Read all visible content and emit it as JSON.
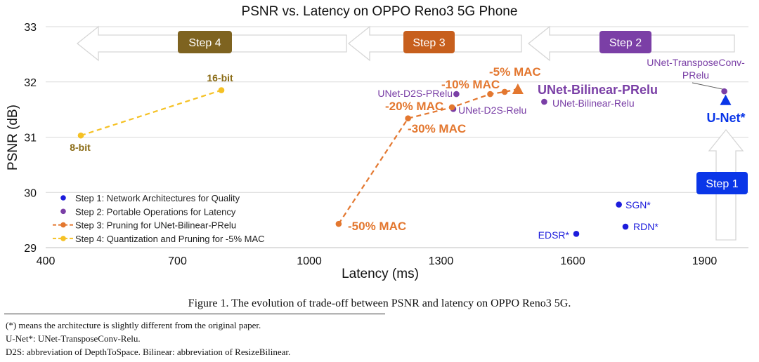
{
  "chart_data": {
    "type": "scatter",
    "title": "PSNR vs. Latency on OPPO Reno3 5G Phone",
    "xlabel": "Latency (ms)",
    "ylabel": "PSNR (dB)",
    "xlim": [
      400,
      2000
    ],
    "ylim": [
      29,
      33
    ],
    "xticks": [
      400,
      700,
      1000,
      1300,
      1600,
      1900
    ],
    "yticks": [
      29,
      30,
      31,
      32,
      33
    ],
    "grid": "horizontal",
    "legend_position": "bottom-left",
    "colors": {
      "step1": "#1c1cdc",
      "step2": "#7a3fa6",
      "step3": "#e3772f",
      "step4": "#f5c124",
      "step4_text": "#8a6b15",
      "banner_step1": "#0a36e8",
      "banner_step2": "#7b3fa6",
      "banner_step3": "#c75f1d",
      "banner_step4": "#7e6320"
    },
    "legend": [
      {
        "label": "Step 1: Network Architectures for Quality",
        "key": "step1",
        "style": "dot"
      },
      {
        "label": "Step 2: Portable Operations for Latency",
        "key": "step2",
        "style": "dot"
      },
      {
        "label": "Step 3: Pruning for UNet-Bilinear-PRelu",
        "key": "step3",
        "style": "dashed"
      },
      {
        "label": "Step 4: Quantization and Pruning for -5% MAC",
        "key": "step4",
        "style": "dashed"
      }
    ],
    "step_banners": [
      "Step 4",
      "Step 3",
      "Step 2",
      "Step 1"
    ],
    "series": [
      {
        "name": "Step 1: Network Architectures for Quality",
        "key": "step1",
        "points": [
          {
            "label": "SGN*",
            "x": 1705,
            "y": 29.78
          },
          {
            "label": "RDN*",
            "x": 1720,
            "y": 29.38
          },
          {
            "label": "EDSR*",
            "x": 1608,
            "y": 29.25
          }
        ]
      },
      {
        "name": "Step 2: Portable Operations for Latency",
        "key": "step2",
        "points": [
          {
            "label": "UNet-TransposeConv-PRelu",
            "x": 1945,
            "y": 31.83
          },
          {
            "label": "UNet-D2S-PRelu",
            "x": 1335,
            "y": 31.78
          },
          {
            "label": "UNet-D2S-Relu",
            "x": 1328,
            "y": 31.51
          },
          {
            "label": "UNet-Bilinear-Relu",
            "x": 1535,
            "y": 31.64
          }
        ]
      },
      {
        "name": "Step 3: Pruning for UNet-Bilinear-PRelu",
        "key": "step3",
        "points": [
          {
            "label": "-50% MAC",
            "x": 1067,
            "y": 29.43
          },
          {
            "label": "-30% MAC",
            "x": 1225,
            "y": 31.34
          },
          {
            "label": "-20% MAC",
            "x": 1325,
            "y": 31.54
          },
          {
            "label": "-10% MAC",
            "x": 1412,
            "y": 31.78
          },
          {
            "label": "-5% MAC",
            "x": 1445,
            "y": 31.82
          }
        ]
      },
      {
        "name": "Step 4: Quantization and Pruning for -5% MAC",
        "key": "step4",
        "points": [
          {
            "label": "8-bit",
            "x": 480,
            "y": 31.03
          },
          {
            "label": "16-bit",
            "x": 800,
            "y": 31.85
          }
        ]
      }
    ],
    "triangles": [
      {
        "label": "UNet-Bilinear-PRelu",
        "x": 1475,
        "y": 31.87
      },
      {
        "label": "U-Net*",
        "x": 1948,
        "y": 31.67
      }
    ]
  },
  "caption": "Figure 1. The evolution of trade-off between PSNR and latency on OPPO Reno3 5G.",
  "footnotes": [
    "(*) means the architecture is slightly different from the original paper.",
    "U-Net*: UNet-TransposeConv-Relu.",
    "D2S: abbreviation of DepthToSpace. Bilinear: abbreviation of ResizeBilinear."
  ]
}
